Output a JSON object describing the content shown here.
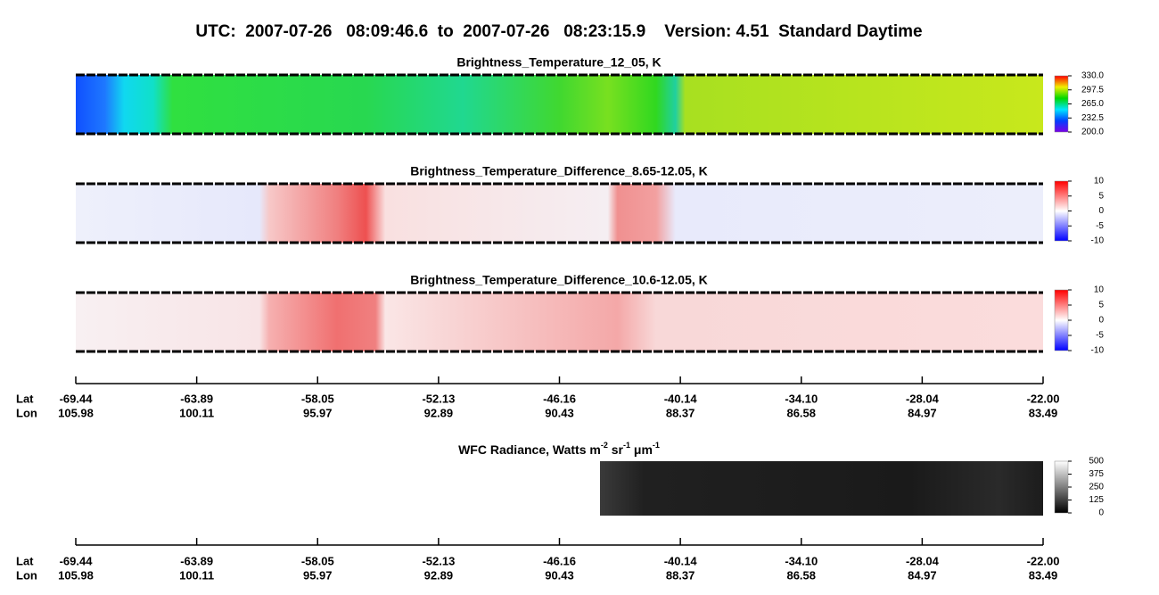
{
  "title": "UTC:  2007-07-26   08:09:46.6  to  2007-07-26   08:23:15.9    Version: 4.51  Standard Daytime",
  "chart_data": [
    {
      "type": "heatmap",
      "title": "Brightness_Temperature_12_05, K",
      "colorbar": {
        "lim": [
          200,
          330
        ],
        "ticks": [
          {
            "value": 200,
            "label": "200.0"
          },
          232.5,
          {
            "value": 265,
            "label": "265.0"
          },
          297.5,
          {
            "value": 330,
            "label": "330.0"
          }
        ],
        "colors": [
          "#7a00e6",
          "#0040ff",
          "#00e6ff",
          "#00d800",
          "#f0f000",
          "#ff0000"
        ]
      }
    },
    {
      "type": "heatmap",
      "title": "Brightness_Temperature_Difference_8.65-12.05, K",
      "colorbar": {
        "lim": [
          -10,
          10
        ],
        "ticks": [
          -10,
          -5,
          0,
          5,
          10
        ],
        "colors": [
          "#0000ff",
          "#ffffff",
          "#ff0000"
        ]
      }
    },
    {
      "type": "heatmap",
      "title": "Brightness_Temperature_Difference_10.6-12.05, K",
      "colorbar": {
        "lim": [
          -10,
          10
        ],
        "ticks": [
          -10,
          -5,
          0,
          5,
          10
        ],
        "colors": [
          "#0000ff",
          "#ffffff",
          "#ff0000"
        ]
      }
    },
    {
      "type": "heatmap",
      "title": [
        "WFC Radiance, Watts m",
        "-2",
        " sr",
        "-1",
        " μm",
        "-1"
      ],
      "colorbar": {
        "lim": [
          0,
          500
        ],
        "ticks": [
          0,
          125,
          250,
          375,
          500
        ],
        "colors": [
          "#000000",
          "#ffffff"
        ]
      }
    }
  ],
  "axis": {
    "rows": [
      {
        "name": "Lat",
        "labels": [
          "-69.44",
          "-63.89",
          "-58.05",
          "-52.13",
          "-46.16",
          "-40.14",
          "-34.10",
          "-28.04",
          "-22.00"
        ]
      },
      {
        "name": "Lon",
        "labels": [
          "105.98",
          "100.11",
          "95.97",
          "92.89",
          "90.43",
          "88.37",
          "86.58",
          "84.97",
          "83.49"
        ]
      }
    ]
  }
}
